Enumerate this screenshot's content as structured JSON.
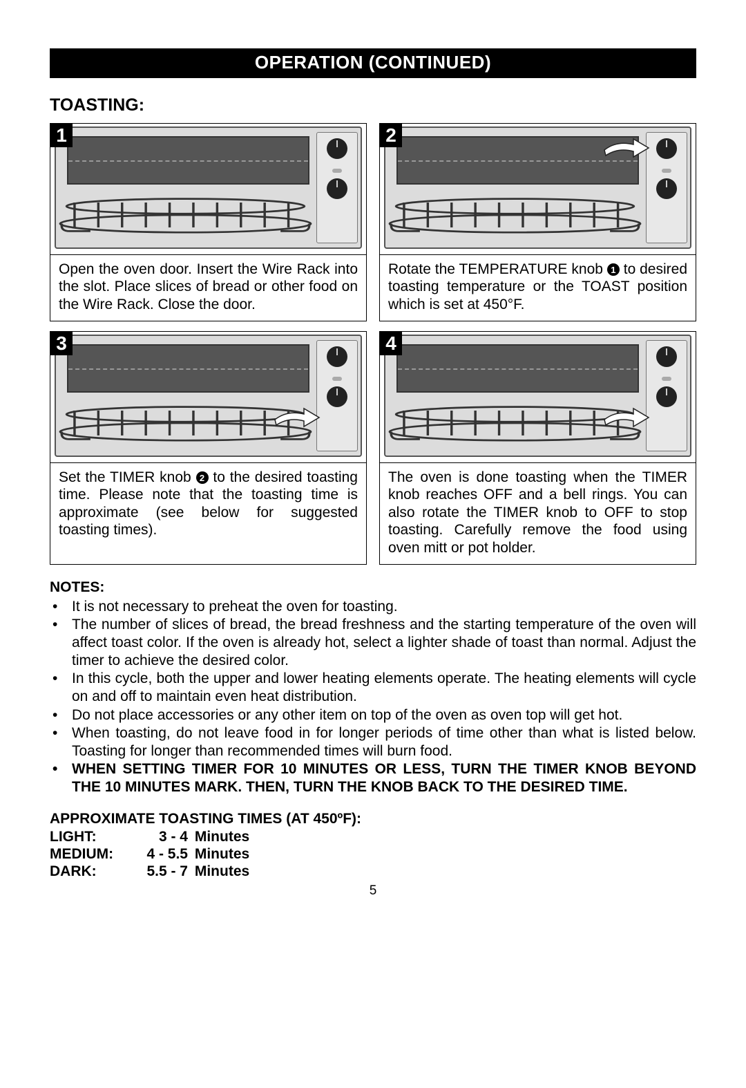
{
  "header": "OPERATION (CONTINUED)",
  "sub_heading": "TOASTING:",
  "steps": [
    {
      "num": "1",
      "arrow_knob_index": null,
      "text_parts": [
        {
          "t": "Open the oven door. Insert the Wire Rack into the slot. Place slices of bread or other food on the Wire Rack. Close the door."
        }
      ]
    },
    {
      "num": "2",
      "arrow_knob_index": 0,
      "text_parts": [
        {
          "t": "Rotate the TEMPERATURE knob "
        },
        {
          "circle": "1"
        },
        {
          "t": " to desired toasting temperature or the TOAST position which is set at 450°F."
        }
      ]
    },
    {
      "num": "3",
      "arrow_knob_index": 1,
      "text_parts": [
        {
          "t": "Set the TIMER knob "
        },
        {
          "circle": "2"
        },
        {
          "t": " to the desired toasting time. Please note that the toasting time is approximate (see below for suggested toasting times)."
        }
      ]
    },
    {
      "num": "4",
      "arrow_knob_index": 2,
      "text_parts": [
        {
          "t": "The oven is done toasting when the TIMER knob reaches OFF and a bell rings. You can also rotate the TIMER knob to OFF to stop toasting. Carefully remove the food using oven mitt or pot holder."
        }
      ]
    }
  ],
  "notes_heading": "NOTES:",
  "notes": [
    {
      "text": "It is not necessary to preheat the oven for toasting.",
      "bold": false
    },
    {
      "text": "The number of slices of bread, the bread freshness and the starting temperature of the oven will affect toast color. If the oven is already hot, select a lighter shade of toast than normal. Adjust the timer to achieve the desired color.",
      "bold": false
    },
    {
      "text": "In this cycle, both the upper and lower heating elements operate. The heating elements will cycle on and off to maintain even heat distribution.",
      "bold": false
    },
    {
      "text": "Do not place accessories or any other item on top of the oven as oven top will get hot.",
      "bold": false
    },
    {
      "text": "When toasting, do not leave food in for longer periods of time other than what is listed below. Toasting for longer than recommended times will burn food.",
      "bold": false
    },
    {
      "text": "WHEN SETTING TIMER FOR 10 MINUTES OR LESS, TURN THE TIMER KNOB BEYOND THE 10 MINUTES MARK. THEN, TURN THE KNOB BACK TO THE DESIRED TIME.",
      "bold": true
    }
  ],
  "times_heading": "APPROXIMATE TOASTING TIMES (AT 450ºF):",
  "times": [
    {
      "label": "LIGHT:",
      "range": "3 - 4",
      "unit": "Minutes"
    },
    {
      "label": "MEDIUM:",
      "range": "4 - 5.5",
      "unit": "Minutes"
    },
    {
      "label": "DARK:",
      "range": "5.5 - 7",
      "unit": "Minutes"
    }
  ],
  "page_number": "5",
  "colors": {
    "band_bg": "#000000",
    "band_fg": "#ffffff",
    "body_bg": "#ffffff",
    "text": "#000000",
    "border": "#000000"
  }
}
